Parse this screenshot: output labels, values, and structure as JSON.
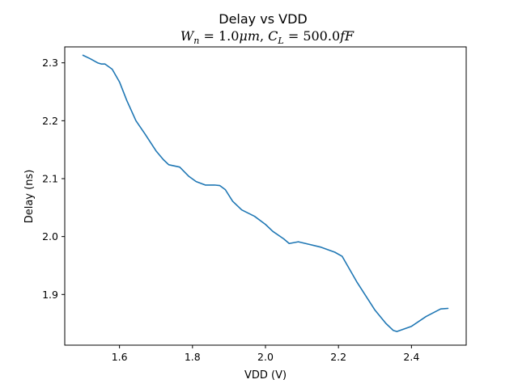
{
  "chart_data": {
    "type": "line",
    "title": "Delay vs VDD",
    "subtitle": "$W_n = 1.0\\mu m, C_L = 500.0fF$",
    "subtitle_display": "Wn = 1.0μm, CL = 500.0fF",
    "xlabel": "VDD (V)",
    "ylabel": "Delay (ns)",
    "xlim": [
      1.45,
      2.55
    ],
    "ylim": [
      1.8125,
      2.3275
    ],
    "xticks": [
      1.6,
      1.8,
      2.0,
      2.2,
      2.4
    ],
    "xtick_labels": [
      "1.6",
      "1.8",
      "2.0",
      "2.2",
      "2.4"
    ],
    "yticks": [
      1.9,
      2.0,
      2.1,
      2.2,
      2.3
    ],
    "ytick_labels": [
      "1.9",
      "2.0",
      "2.1",
      "2.2",
      "2.3"
    ],
    "grid": false,
    "legend": "none",
    "series": [
      {
        "color": "#1f77b4",
        "x": [
          1.5,
          1.52,
          1.54,
          1.55,
          1.56,
          1.58,
          1.6,
          1.62,
          1.645,
          1.67,
          1.7,
          1.72,
          1.735,
          1.765,
          1.79,
          1.81,
          1.835,
          1.86,
          1.875,
          1.89,
          1.91,
          1.935,
          1.97,
          2.0,
          2.02,
          2.05,
          2.065,
          2.09,
          2.11,
          2.15,
          2.19,
          2.21,
          2.25,
          2.3,
          2.33,
          2.35,
          2.36,
          2.4,
          2.44,
          2.48,
          2.5
        ],
        "y": [
          2.313,
          2.307,
          2.3,
          2.298,
          2.298,
          2.289,
          2.267,
          2.235,
          2.2,
          2.177,
          2.148,
          2.133,
          2.124,
          2.12,
          2.104,
          2.095,
          2.089,
          2.089,
          2.088,
          2.081,
          2.061,
          2.046,
          2.035,
          2.021,
          2.009,
          1.996,
          1.988,
          1.991,
          1.988,
          1.982,
          1.973,
          1.966,
          1.922,
          1.873,
          1.85,
          1.838,
          1.836,
          1.845,
          1.862,
          1.875,
          1.876
        ]
      }
    ]
  }
}
